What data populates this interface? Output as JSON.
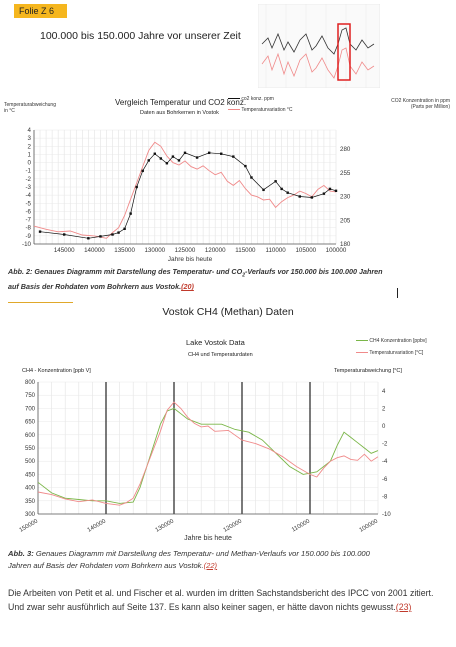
{
  "slide": {
    "badge": "Folie Z 6",
    "title": "100.000 bis 150.000 Jahre vor unserer Zeit"
  },
  "chart1": {
    "title": "Vergleich Temperatur und CO2 konz.",
    "subtitle": "Daten aus Bohrkernen in Vostok",
    "legend_co2": "co2 konz. ppm",
    "legend_temp": "Temperaturvariation °C",
    "left_axis_title": "Temperaturabweichung in °C",
    "right_axis_title": "CO2 Konzentration in ppm (Parts per Million)",
    "xlabel": "Jahre bis heute"
  },
  "caption1": {
    "prefix": "Abb. 2:",
    "text": " Genaues Diagramm mit Darstellung des Temperatur- und CO",
    "sub": "2",
    "text2": "-Verlaufs vor 150.000 bis 100.000 Jahren",
    "line2": "auf Basis der Rohdaten vom Bohrkern aus Vostok.",
    "ref": "(20)"
  },
  "section_heading": "Vostok CH4 (Methan) Daten",
  "chart2": {
    "title": "Lake Vostok Data",
    "subtitle": "CH4 und Temperaturdaten",
    "legend_ch4": "CH4 Konzentration [ppbv]",
    "legend_temp": "Temperaturvariation [°C]",
    "left_axis_title": "CH4 - Konzentration [ppb V]",
    "right_axis_title": "Temperaturabweichung [°C]",
    "xlabel": "Jahre bis heute"
  },
  "caption2": {
    "prefix": "Abb. 3:",
    "text": " Genaues Diagramm mit Darstellung des Temperatur- und Methan-Verlaufs vor 150.000 bis 100.000",
    "line2": "Jahren auf Basis der Rohdaten vom Bohrkern aus Vostok.",
    "ref": "(22)"
  },
  "body": {
    "text": "Die Arbeiten von Petit et al. und Fischer et al. wurden im dritten Sachstandsbericht des IPCC von 2001 zitiert. Und zwar sehr ausführlich auf Seite 137. Es kann also keiner sagen, er hätte davon nichts gewusst.",
    "ref": "(23)"
  },
  "colors": {
    "temp": "#f08a8a",
    "co2": "#111111",
    "ch4": "#7ab648",
    "accent": "#f5b61e",
    "highlight": "#e02020"
  },
  "chart_data": [
    {
      "type": "line",
      "title": "Vergleich Temperatur und CO2 konz.",
      "xlabel": "Jahre bis heute",
      "x_ticks": [
        145000,
        140000,
        135000,
        130000,
        125000,
        120000,
        115000,
        110000,
        105000,
        100000
      ],
      "y_left_ticks": [
        4,
        3,
        2,
        1,
        0,
        -1,
        -2,
        -3,
        -4,
        -5,
        -6,
        -7,
        -8,
        -9,
        -10
      ],
      "y_right_ticks": [
        280,
        255,
        230,
        205,
        180
      ],
      "xlim": [
        150000,
        100000
      ],
      "ylim_left": [
        -10,
        4
      ],
      "ylim_right": [
        180,
        300
      ],
      "series": [
        {
          "name": "Temperaturvariation °C",
          "axis": "left",
          "x": [
            150000,
            148000,
            146000,
            144000,
            142000,
            140000,
            138000,
            137000,
            136000,
            135000,
            134000,
            133000,
            132000,
            131000,
            130000,
            129000,
            128000,
            127000,
            126000,
            125000,
            124000,
            123000,
            122000,
            121000,
            120000,
            119000,
            118000,
            117000,
            116000,
            115000,
            114000,
            113000,
            112000,
            111000,
            110000,
            109000,
            108000,
            107000,
            106000,
            105000,
            104000,
            103000,
            102000,
            101000,
            100000
          ],
          "values": [
            -7.8,
            -8.2,
            -8.5,
            -8.4,
            -8.9,
            -9.0,
            -9.3,
            -8.6,
            -8.0,
            -6.5,
            -4.5,
            -2.5,
            -0.5,
            1.5,
            2.5,
            2.0,
            0.8,
            0.0,
            -0.3,
            0.2,
            -0.5,
            -0.8,
            -0.4,
            -1.0,
            -1.5,
            -1.2,
            -2.3,
            -2.8,
            -2.2,
            -3.2,
            -4.0,
            -4.2,
            -4.6,
            -4.5,
            -5.5,
            -4.8,
            -4.3,
            -4.0,
            -3.5,
            -3.8,
            -4.2,
            -3.3,
            -2.8,
            -3.5,
            -3.6
          ]
        },
        {
          "name": "co2 konz. ppm",
          "axis": "right",
          "x": [
            149000,
            145000,
            141000,
            139000,
            137000,
            136000,
            135000,
            134000,
            133000,
            132000,
            131000,
            130000,
            129000,
            128000,
            127000,
            126000,
            125000,
            123000,
            121000,
            119000,
            117000,
            115000,
            114000,
            112000,
            110000,
            109000,
            108000,
            106000,
            104000,
            102000,
            101000,
            100000
          ],
          "values": [
            193,
            190,
            186,
            188,
            190,
            192,
            196,
            212,
            240,
            257,
            268,
            275,
            270,
            265,
            272,
            268,
            276,
            271,
            276,
            275,
            272,
            262,
            250,
            237,
            246,
            238,
            234,
            230,
            229,
            233,
            238,
            236
          ]
        }
      ]
    },
    {
      "type": "line",
      "title": "Lake Vostok Data",
      "xlabel": "Jahre bis heute",
      "x_ticks": [
        150000,
        140000,
        130000,
        120000,
        110000,
        100000
      ],
      "y_left_ticks": [
        800,
        750,
        700,
        650,
        600,
        550,
        500,
        450,
        400,
        350,
        300
      ],
      "y_right_ticks": [
        4,
        2,
        0,
        -2,
        -4,
        -6,
        -8,
        -10
      ],
      "xlim": [
        150000,
        100000
      ],
      "ylim_left": [
        300,
        800
      ],
      "ylim_right": [
        -10,
        5
      ],
      "series": [
        {
          "name": "CH4 Konzentration [ppbv]",
          "axis": "left",
          "x": [
            150000,
            148000,
            146000,
            144000,
            142000,
            140000,
            138000,
            136000,
            135000,
            134000,
            133000,
            132000,
            131000,
            130000,
            129000,
            128000,
            127000,
            126000,
            125000,
            123000,
            121000,
            119000,
            117000,
            115000,
            113000,
            111000,
            109000,
            107000,
            106000,
            105000,
            104000,
            103000,
            102000,
            101000,
            100000
          ],
          "values": [
            420,
            380,
            360,
            355,
            350,
            350,
            340,
            345,
            400,
            480,
            560,
            640,
            690,
            700,
            680,
            660,
            650,
            640,
            640,
            640,
            620,
            610,
            580,
            530,
            480,
            450,
            460,
            500,
            560,
            610,
            590,
            570,
            550,
            530,
            540
          ]
        },
        {
          "name": "Temperaturvariation [°C]",
          "axis": "right",
          "x": [
            150000,
            148000,
            146000,
            144000,
            142000,
            140000,
            138000,
            137000,
            136000,
            135000,
            134000,
            133000,
            132000,
            131000,
            130000,
            129000,
            128000,
            127000,
            126000,
            125000,
            124000,
            122000,
            120000,
            118000,
            116000,
            114000,
            112000,
            110000,
            109000,
            108000,
            107000,
            106000,
            105000,
            104000,
            103000,
            102000,
            101000,
            100000
          ],
          "values": [
            -7.5,
            -7.8,
            -8.3,
            -8.6,
            -8.4,
            -8.8,
            -9.0,
            -8.7,
            -8.2,
            -6.6,
            -4.6,
            -2.6,
            -0.6,
            1.8,
            2.7,
            2.0,
            1.0,
            0.3,
            -0.1,
            0.0,
            -0.6,
            -0.5,
            -1.6,
            -2.0,
            -2.6,
            -3.5,
            -4.6,
            -5.5,
            -5.8,
            -4.8,
            -4.0,
            -3.6,
            -3.4,
            -3.8,
            -3.9,
            -3.2,
            -4.0,
            -3.5
          ]
        }
      ]
    }
  ]
}
